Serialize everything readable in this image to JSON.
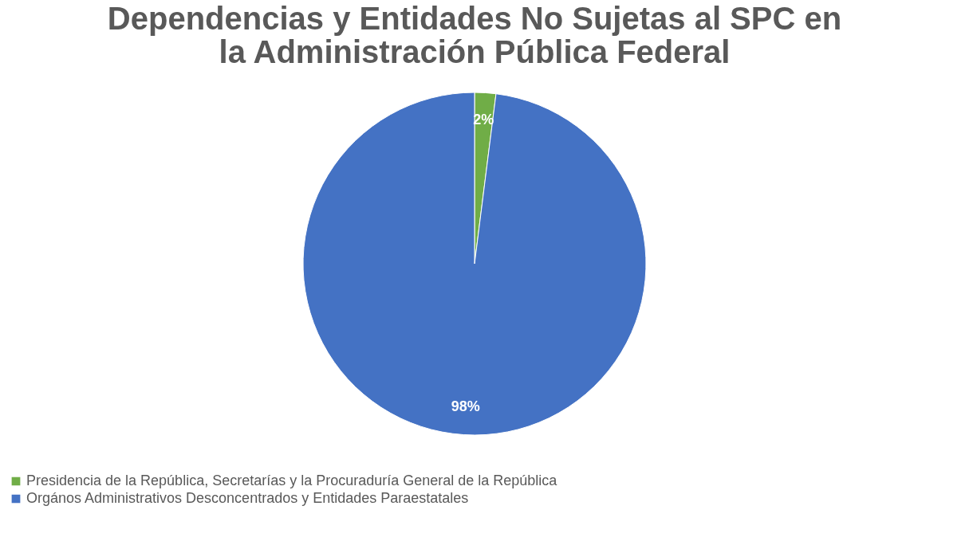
{
  "chart_data": {
    "type": "pie",
    "title": [
      "Dependencias y Entidades No Sujetas al SPC en",
      "la Administración Pública Federal"
    ],
    "categories": [
      "Presidencia de la República, Secretarías y la Procuraduría General de la República",
      "Orgános Administrativos Desconcentrados y Entidades Paraestatales"
    ],
    "values": [
      2,
      98
    ],
    "colors": [
      "#70ad47",
      "#4472c4"
    ],
    "value_labels": [
      "2%",
      "98%"
    ],
    "legend": "bottom"
  }
}
